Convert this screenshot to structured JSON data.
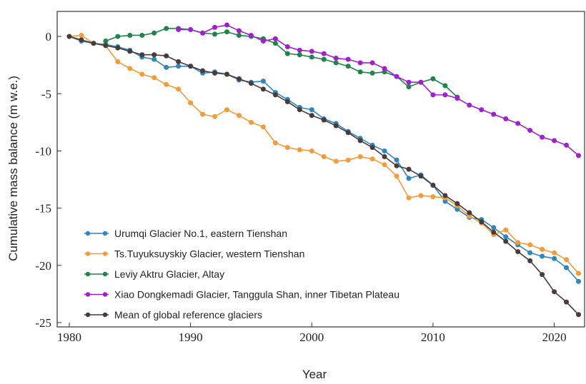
{
  "chart_data": {
    "type": "line",
    "xlabel": "Year",
    "ylabel": "Cumulative mass balance (m w.e.)",
    "x": [
      1980,
      1981,
      1982,
      1983,
      1984,
      1985,
      1986,
      1987,
      1988,
      1989,
      1990,
      1991,
      1992,
      1993,
      1994,
      1995,
      1996,
      1997,
      1998,
      1999,
      2000,
      2001,
      2002,
      2003,
      2004,
      2005,
      2006,
      2007,
      2008,
      2009,
      2010,
      2011,
      2012,
      2013,
      2014,
      2015,
      2016,
      2017,
      2018,
      2019,
      2020,
      2021,
      2022
    ],
    "xlim": [
      1979,
      2022.5
    ],
    "xticks": [
      1980,
      1990,
      2000,
      2010,
      2020
    ],
    "ylim": [
      -25,
      2
    ],
    "yticks": [
      0,
      -5,
      -10,
      -15,
      -20,
      -25
    ],
    "legend": "lower left",
    "series": [
      {
        "name": "Urumqi Glacier No.1, eastern Tienshan",
        "color": "#2e86c1",
        "values": [
          0,
          -0.4,
          -0.6,
          -0.7,
          -0.9,
          -1.2,
          -1.8,
          -2.0,
          -2.7,
          -2.6,
          -2.6,
          -3.2,
          -3.1,
          -3.3,
          -3.8,
          -4.0,
          -3.9,
          -4.9,
          -5.5,
          -6.2,
          -6.4,
          -7.2,
          -7.6,
          -8.3,
          -8.9,
          -9.5,
          -10.0,
          -10.8,
          -12.4,
          -12.1,
          -13.0,
          -14.4,
          -15.1,
          -15.8,
          -16.0,
          -16.7,
          -17.5,
          -18.2,
          -18.9,
          -19.2,
          -19.4,
          -20.2,
          -21.4
        ]
      },
      {
        "name": "Ts.Tuyuksuyskiy Glacier, western Tienshan",
        "color": "#f39c38",
        "values": [
          0,
          0.1,
          -0.6,
          -0.8,
          -2.2,
          -2.8,
          -3.3,
          -3.6,
          -4.2,
          -4.6,
          -5.8,
          -6.8,
          -7.0,
          -6.4,
          -6.9,
          -7.5,
          -7.9,
          -9.3,
          -9.7,
          -9.9,
          -10.0,
          -10.5,
          -10.9,
          -10.8,
          -10.5,
          -10.7,
          -11.2,
          -12.2,
          -14.1,
          -13.9,
          -14.0,
          -14.1,
          -14.8,
          -15.7,
          -16.3,
          -17.3,
          -16.9,
          -18.0,
          -18.2,
          -18.6,
          -18.9,
          -19.5,
          -20.7
        ]
      },
      {
        "name": "Leviy Aktru Glacier, Altay",
        "color": "#1e8449",
        "values": [
          null,
          null,
          null,
          -0.4,
          0,
          0.1,
          0.1,
          0.3,
          0.7,
          0.7,
          0.6,
          0.3,
          0.2,
          0.4,
          0.1,
          0.0,
          -0.2,
          -0.6,
          -1.5,
          -1.6,
          -1.8,
          -2.0,
          -2.3,
          -2.6,
          -3.1,
          -3.2,
          -3.1,
          -3.5,
          -4.4,
          -4.0,
          -3.7,
          -4.3,
          -5.3,
          null,
          null,
          null,
          null,
          null,
          null,
          null,
          null,
          null,
          null
        ]
      },
      {
        "name": "Xiao Dongkemadi Glacier, Tanggula Shan, inner Tibetan Plateau",
        "color": "#a020d0",
        "values": [
          null,
          null,
          null,
          null,
          null,
          null,
          null,
          null,
          null,
          0.6,
          0.6,
          0.3,
          0.8,
          1.0,
          0.5,
          0.1,
          -0.4,
          -0.2,
          -0.9,
          -1.2,
          -1.3,
          -1.5,
          -1.9,
          -2.0,
          -2.3,
          -2.3,
          -2.8,
          -3.5,
          -4.0,
          -4.0,
          -5.1,
          -5.1,
          -5.4,
          -6.0,
          -6.4,
          -6.8,
          -7.2,
          -7.6,
          -8.2,
          -8.8,
          -9.1,
          -9.5,
          -10.4
        ]
      },
      {
        "name": "Mean of global reference glaciers",
        "color": "#4a3b3b",
        "values": [
          0,
          -0.3,
          -0.6,
          -0.8,
          -1.0,
          -1.3,
          -1.6,
          -1.6,
          -1.7,
          -2.2,
          -2.6,
          -3.0,
          -3.2,
          -3.3,
          -3.7,
          -4.1,
          -4.6,
          -5.1,
          -5.7,
          -6.4,
          -6.9,
          -7.3,
          -7.8,
          -8.4,
          -9.1,
          -9.7,
          -10.5,
          -11.3,
          -11.6,
          -12.2,
          -13.0,
          -13.9,
          -14.6,
          -15.4,
          -16.2,
          -17.1,
          -17.9,
          -18.8,
          -19.6,
          -20.8,
          -22.3,
          -23.2,
          -24.3
        ]
      }
    ]
  }
}
